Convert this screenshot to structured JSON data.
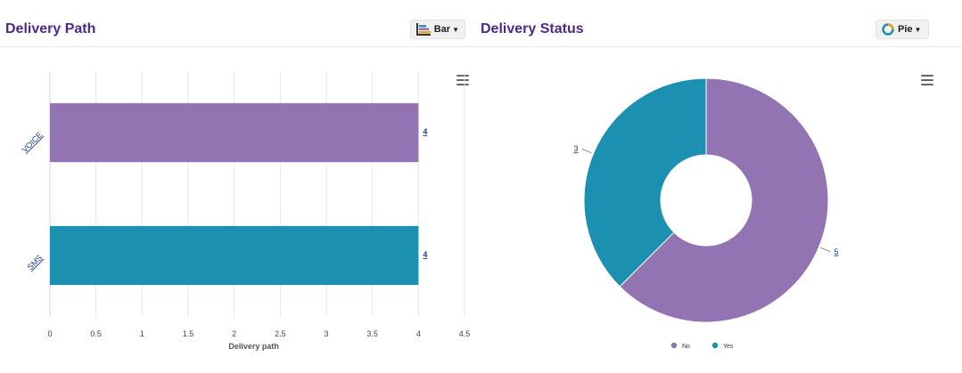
{
  "left_panel": {
    "title": "Delivery Path",
    "type_button": {
      "label": "Bar",
      "icon": "bar-chart-icon"
    },
    "menu_icon": "hamburger-icon"
  },
  "right_panel": {
    "title": "Delivery Status",
    "type_button": {
      "label": "Pie",
      "icon": "donut-chart-icon"
    },
    "menu_icon": "hamburger-icon"
  },
  "chart_data": [
    {
      "type": "bar",
      "orientation": "horizontal",
      "categories": [
        "VOICE",
        "SMS"
      ],
      "values": [
        4,
        4
      ],
      "colors": [
        "#9274b2",
        "#1b90b0"
      ],
      "xlabel": "Delivery path",
      "xlim": [
        0,
        4.5
      ],
      "xticks": [
        "0",
        "0.5",
        "1",
        "1.5",
        "2",
        "2.5",
        "3",
        "3.5",
        "4",
        "4.5"
      ],
      "data_labels": [
        "4",
        "4"
      ],
      "grid": true
    },
    {
      "type": "pie",
      "variant": "donut",
      "labels": [
        "No",
        "Yes"
      ],
      "values": [
        5,
        3
      ],
      "colors": [
        "#9274b2",
        "#1b90b0"
      ],
      "data_labels": [
        "5",
        "3"
      ],
      "legend": "bottom-center"
    }
  ]
}
